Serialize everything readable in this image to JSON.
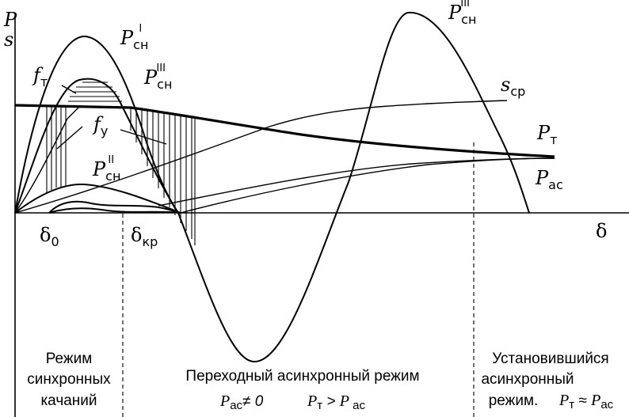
{
  "axes": {
    "y_label_p": "P",
    "y_label_s": "s",
    "x_label": "δ"
  },
  "curve_labels": {
    "p_sn_1": {
      "base": "P",
      "sub": "сн",
      "sup": "I"
    },
    "p_sn_2": {
      "base": "P",
      "sub": "сн",
      "sup": "II"
    },
    "p_sn_3_small": {
      "base": "P",
      "sub": "сн",
      "sup": "III"
    },
    "p_sn_3_big": {
      "base": "P",
      "sub": "сн",
      "sup": "III"
    },
    "f_t": {
      "base": "f",
      "sub": "т"
    },
    "f_y": {
      "base": "f",
      "sub": "у"
    },
    "s_sr": {
      "base": "s",
      "sub": "ср"
    },
    "p_t": {
      "base": "P",
      "sub": "т"
    },
    "p_as": {
      "base": "P",
      "sub": "ас"
    }
  },
  "x_marks": {
    "delta_0": {
      "base": "δ",
      "sub": "0"
    },
    "delta_kr": {
      "base": "δ",
      "sub": "кр"
    }
  },
  "captions": {
    "sync": [
      "Режим",
      "синхронных",
      "качаний"
    ],
    "transient_title": "Переходный  асинхронный  режим",
    "transient_cond_1": {
      "a": "P",
      "a_sub": "ас",
      "rest": "≠ 0"
    },
    "transient_cond_2": {
      "a": "P",
      "a_sub": "т",
      "op": " > ",
      "b": "P",
      "b_sub": " ас"
    },
    "steady": [
      "Установившийся",
      "асинхронный",
      "режим."
    ],
    "steady_cond": {
      "a": "P",
      "a_sub": "т",
      "op": " ≈ ",
      "b": "P",
      "b_sub": "ас"
    }
  }
}
